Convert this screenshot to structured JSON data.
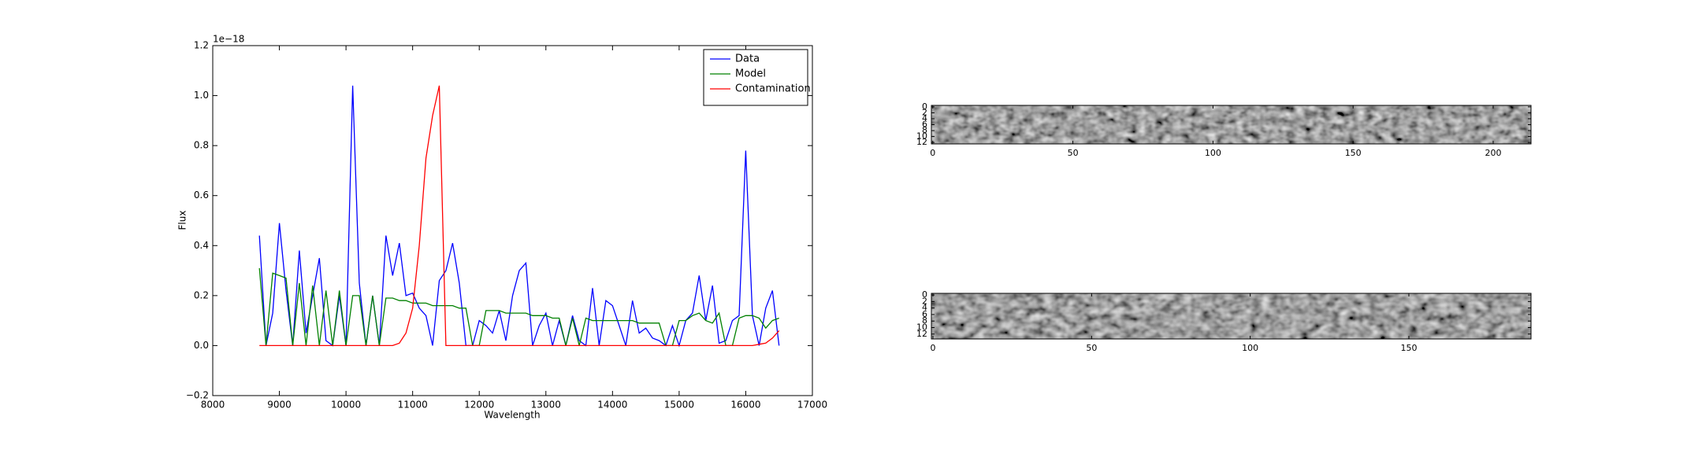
{
  "chart_data": [
    {
      "type": "line",
      "xlabel": "Wavelength",
      "ylabel": "Flux",
      "offset_label": "1e−18",
      "xlim": [
        8000,
        17000
      ],
      "xticks": [
        8000,
        9000,
        10000,
        11000,
        12000,
        13000,
        14000,
        15000,
        16000,
        17000
      ],
      "ylim": [
        -0.2,
        1.2
      ],
      "yticks": [
        {
          "value": -0.2,
          "label": "−0.2"
        },
        {
          "value": 0,
          "label": "0.0"
        },
        0.2,
        0.4,
        0.6,
        0.8,
        {
          "value": 1,
          "label": "1.0"
        },
        1.2
      ],
      "legend": "upper right",
      "x": [
        8700,
        8800,
        8900,
        9000,
        9100,
        9200,
        9300,
        9400,
        9500,
        9600,
        9700,
        9800,
        9900,
        10000,
        10100,
        10200,
        10300,
        10400,
        10500,
        10600,
        10700,
        10800,
        10900,
        11000,
        11100,
        11200,
        11300,
        11400,
        11500,
        11600,
        11700,
        11800,
        11900,
        12000,
        12100,
        12200,
        12300,
        12400,
        12500,
        12600,
        12700,
        12800,
        12900,
        13000,
        13100,
        13200,
        13300,
        13400,
        13500,
        13600,
        13700,
        13800,
        13900,
        14000,
        14100,
        14200,
        14300,
        14400,
        14500,
        14600,
        14700,
        14800,
        14900,
        15000,
        15100,
        15200,
        15300,
        15400,
        15500,
        15600,
        15700,
        15800,
        15900,
        16000,
        16100,
        16200,
        16300,
        16400,
        16500
      ],
      "series": [
        {
          "name": "Data",
          "color": "#0000ff",
          "values": [
            0.44,
            0,
            0.13,
            0.49,
            0.22,
            0,
            0.38,
            0.05,
            0.2,
            0.35,
            0.02,
            0,
            0.2,
            0,
            1.04,
            0.25,
            0,
            0.2,
            0,
            0.44,
            0.28,
            0.41,
            0.2,
            0.21,
            0.15,
            0.12,
            0,
            0.26,
            0.3,
            0.41,
            0.25,
            0,
            0,
            0.1,
            0.08,
            0.05,
            0.14,
            0.02,
            0.2,
            0.3,
            0.33,
            0,
            0.08,
            0.13,
            0,
            0.1,
            0,
            0.12,
            0.02,
            0,
            0.23,
            0,
            0.18,
            0.16,
            0.08,
            0,
            0.18,
            0.05,
            0.07,
            0.03,
            0.02,
            0,
            0.08,
            0,
            0.1,
            0.13,
            0.28,
            0.1,
            0.24,
            0.01,
            0.02,
            0.1,
            0.12,
            0.78,
            0.12,
            0,
            0.15,
            0.22,
            0
          ]
        },
        {
          "name": "Model",
          "color": "#008000",
          "values": [
            0.31,
            0,
            0.29,
            0.28,
            0.27,
            0,
            0.25,
            0,
            0.24,
            0,
            0.22,
            0,
            0.22,
            0,
            0.2,
            0.2,
            0,
            0.2,
            0,
            0.19,
            0.19,
            0.18,
            0.18,
            0.17,
            0.17,
            0.17,
            0.16,
            0.16,
            0.16,
            0.16,
            0.15,
            0.15,
            0,
            0,
            0.14,
            0.14,
            0.14,
            0.13,
            0.13,
            0.13,
            0.13,
            0.12,
            0.12,
            0.12,
            0.11,
            0.11,
            0,
            0.11,
            0,
            0.11,
            0.1,
            0.1,
            0.1,
            0.1,
            0.1,
            0.1,
            0.1,
            0.09,
            0.09,
            0.09,
            0.09,
            0,
            0,
            0.1,
            0.1,
            0.12,
            0.13,
            0.1,
            0.09,
            0.13,
            0,
            0,
            0.11,
            0.12,
            0.12,
            0.11,
            0.07,
            0.1,
            0.11
          ]
        },
        {
          "name": "Contamination",
          "color": "#ff0000",
          "values": [
            0,
            0,
            0,
            0,
            0,
            0,
            0,
            0,
            0,
            0,
            0,
            0,
            0,
            0,
            0,
            0,
            0,
            0,
            0,
            0,
            0,
            0.01,
            0.05,
            0.15,
            0.4,
            0.75,
            0.92,
            1.04,
            0,
            0,
            0,
            0,
            0,
            0,
            0,
            0,
            0,
            0,
            0,
            0,
            0,
            0,
            0,
            0,
            0,
            0,
            0,
            0,
            0,
            0,
            0,
            0,
            0,
            0,
            0,
            0,
            0,
            0,
            0,
            0,
            0,
            0,
            0,
            0,
            0,
            0,
            0,
            0,
            0,
            0,
            0,
            0,
            0,
            0,
            0,
            0.005,
            0.01,
            0.03,
            0.06
          ]
        }
      ]
    },
    {
      "type": "image",
      "xlim": [
        -0.5,
        213.5
      ],
      "ylim": [
        12.5,
        -0.5
      ],
      "xticks": [
        0,
        50,
        100,
        150,
        200
      ],
      "yticks": [
        0,
        2,
        4,
        6,
        8,
        10,
        12
      ]
    },
    {
      "type": "image",
      "xlim": [
        -0.5,
        188.5
      ],
      "ylim": [
        13.5,
        -0.5
      ],
      "xticks": [
        0,
        50,
        100,
        150
      ],
      "yticks": [
        0,
        2,
        4,
        6,
        8,
        10,
        12
      ]
    }
  ]
}
